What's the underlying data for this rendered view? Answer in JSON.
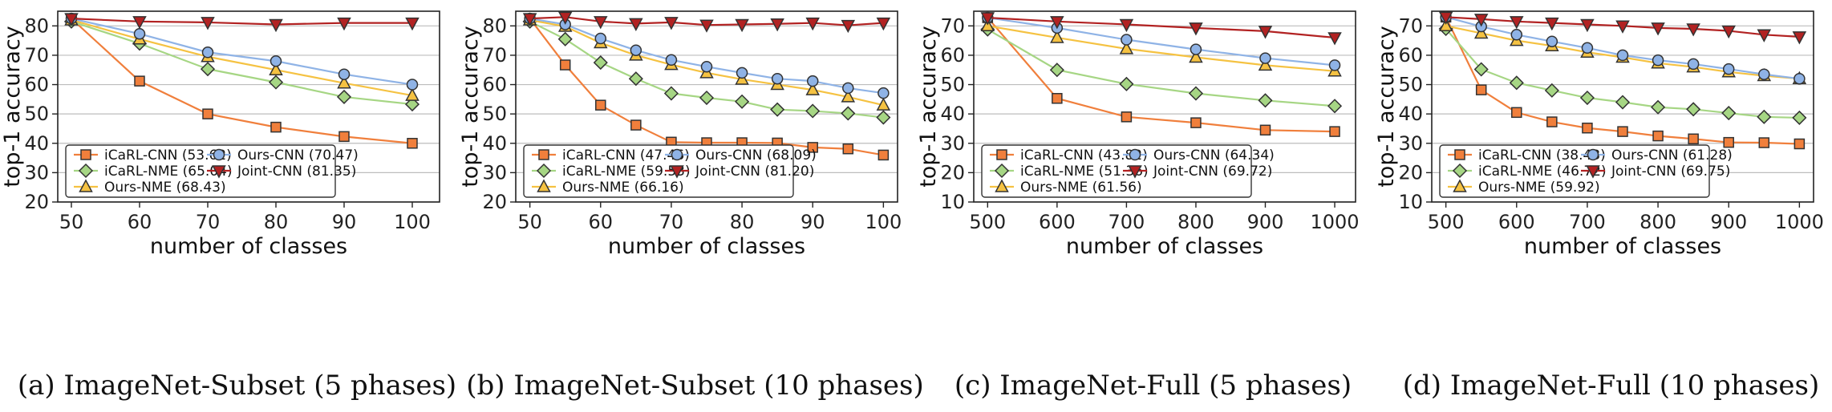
{
  "colors": {
    "iCaRL-CNN": "#f07f3c",
    "iCaRL-NME": "#a6d684",
    "Ours-NME": "#f5c242",
    "Ours-CNN": "#8fb3e6",
    "Joint-CNN": "#b22222"
  },
  "chart_data": [
    {
      "type": "line",
      "caption": "(a) ImageNet-Subset (5 phases)",
      "xlabel": "number of classes",
      "ylabel": "top-1 accuracy",
      "xlim": [
        48,
        104
      ],
      "ylim": [
        20,
        85
      ],
      "xticks": [
        50,
        60,
        70,
        80,
        90,
        100
      ],
      "yticks": [
        20,
        30,
        40,
        50,
        60,
        70,
        80
      ],
      "grid": "horizontal",
      "legend_position": "lower-left",
      "x": [
        50,
        60,
        70,
        80,
        90,
        100
      ],
      "series": [
        {
          "name": "iCaRL-CNN",
          "legend": "iCaRL-CNN (53.62)",
          "marker": "square",
          "values": [
            82.5,
            61.2,
            50.0,
            45.5,
            42.3,
            40.0
          ]
        },
        {
          "name": "iCaRL-NME",
          "legend": "iCaRL-NME (65.04)",
          "marker": "diamond",
          "values": [
            81.5,
            74.0,
            65.3,
            60.8,
            55.8,
            53.3
          ]
        },
        {
          "name": "Ours-NME",
          "legend": "Ours-NME (68.43)",
          "marker": "triangle-up",
          "values": [
            82.0,
            75.5,
            69.5,
            65.0,
            60.5,
            56.3
          ]
        },
        {
          "name": "Ours-CNN",
          "legend": "Ours-CNN (70.47)",
          "marker": "circle",
          "values": [
            82.5,
            77.3,
            71.0,
            68.0,
            63.5,
            60.0
          ]
        },
        {
          "name": "Joint-CNN",
          "legend": "Joint-CNN (81.35)",
          "marker": "triangle-down",
          "values": [
            82.5,
            81.5,
            81.2,
            80.5,
            81.0,
            81.0
          ]
        }
      ]
    },
    {
      "type": "line",
      "caption": "(b) ImageNet-Subset (10 phases)",
      "xlabel": "number of classes",
      "ylabel": "top-1 accuracy",
      "xlim": [
        48,
        102
      ],
      "ylim": [
        20,
        85
      ],
      "xticks": [
        50,
        60,
        70,
        80,
        90,
        100
      ],
      "yticks": [
        20,
        30,
        40,
        50,
        60,
        70,
        80
      ],
      "grid": "horizontal",
      "legend_position": "lower-left",
      "x": [
        50,
        55,
        60,
        65,
        70,
        75,
        80,
        85,
        90,
        95,
        100
      ],
      "series": [
        {
          "name": "iCaRL-CNN",
          "legend": "iCaRL-CNN (47.46)",
          "marker": "square",
          "values": [
            82.5,
            66.7,
            53.0,
            46.2,
            40.4,
            40.2,
            40.2,
            40.1,
            38.6,
            38.1,
            36.0
          ]
        },
        {
          "name": "iCaRL-NME",
          "legend": "iCaRL-NME (59.53)",
          "marker": "diamond",
          "values": [
            81.5,
            75.5,
            67.5,
            62.0,
            57.0,
            55.5,
            54.2,
            51.5,
            51.0,
            50.2,
            48.8
          ]
        },
        {
          "name": "Ours-NME",
          "legend": "Ours-NME (66.16)",
          "marker": "triangle-up",
          "values": [
            82.0,
            79.8,
            74.2,
            70.0,
            66.8,
            64.0,
            61.8,
            60.0,
            58.2,
            55.8,
            53.0
          ]
        },
        {
          "name": "Ours-CNN",
          "legend": "Ours-CNN (68.09)",
          "marker": "circle",
          "values": [
            82.5,
            80.5,
            75.7,
            71.7,
            68.4,
            66.1,
            64.0,
            62.0,
            61.2,
            58.8,
            57.1
          ]
        },
        {
          "name": "Joint-CNN",
          "legend": "Joint-CNN (81.20)",
          "marker": "triangle-down",
          "values": [
            82.5,
            83.0,
            81.5,
            80.8,
            81.2,
            80.3,
            80.5,
            80.7,
            81.0,
            80.2,
            81.0
          ]
        }
      ]
    },
    {
      "type": "line",
      "caption": "(c) ImageNet-Full (5 phases)",
      "xlabel": "number of classes",
      "ylabel": "top-1 accuracy",
      "xlim": [
        480,
        1030
      ],
      "ylim": [
        10,
        75
      ],
      "xticks": [
        500,
        600,
        700,
        800,
        900,
        1000
      ],
      "yticks": [
        10,
        20,
        30,
        40,
        50,
        60,
        70
      ],
      "grid": "horizontal",
      "legend_position": "lower-left",
      "x": [
        500,
        600,
        700,
        800,
        900,
        1000
      ],
      "series": [
        {
          "name": "iCaRL-CNN",
          "legend": "iCaRL-CNN (43.82)",
          "marker": "square",
          "values": [
            72.8,
            45.3,
            39.0,
            37.0,
            34.5,
            34.0
          ]
        },
        {
          "name": "iCaRL-NME",
          "legend": "iCaRL-NME (51.36)",
          "marker": "diamond",
          "values": [
            68.8,
            55.0,
            50.2,
            47.0,
            44.6,
            42.7
          ]
        },
        {
          "name": "Ours-NME",
          "legend": "Ours-NME (61.56)",
          "marker": "triangle-up",
          "values": [
            70.0,
            66.0,
            62.2,
            59.3,
            56.6,
            54.6
          ]
        },
        {
          "name": "Ours-CNN",
          "legend": "Ours-CNN (64.34)",
          "marker": "circle",
          "values": [
            72.8,
            69.3,
            65.3,
            62.0,
            59.0,
            56.6
          ]
        },
        {
          "name": "Joint-CNN",
          "legend": "Joint-CNN (69.72)",
          "marker": "triangle-down",
          "values": [
            72.8,
            71.5,
            70.5,
            69.3,
            68.2,
            66.0
          ]
        }
      ]
    },
    {
      "type": "line",
      "caption": "(d) ImageNet-Full (10 phases)",
      "xlabel": "number of classes",
      "ylabel": "top-1 accuracy",
      "xlim": [
        480,
        1020
      ],
      "ylim": [
        10,
        75
      ],
      "xticks": [
        500,
        600,
        700,
        800,
        900,
        1000
      ],
      "yticks": [
        10,
        20,
        30,
        40,
        50,
        60,
        70
      ],
      "grid": "horizontal",
      "legend_position": "lower-left",
      "x": [
        500,
        550,
        600,
        650,
        700,
        750,
        800,
        850,
        900,
        950,
        1000
      ],
      "series": [
        {
          "name": "iCaRL-CNN",
          "legend": "iCaRL-CNN (38.43)",
          "marker": "square",
          "values": [
            73.0,
            48.2,
            40.5,
            37.3,
            35.2,
            34.0,
            32.5,
            31.5,
            30.3,
            30.2,
            29.8
          ]
        },
        {
          "name": "iCaRL-NME",
          "legend": "iCaRL-NME (46.72)",
          "marker": "diamond",
          "values": [
            69.0,
            55.2,
            50.6,
            48.0,
            45.5,
            44.0,
            42.3,
            41.6,
            40.3,
            39.0,
            38.7
          ]
        },
        {
          "name": "Ours-NME",
          "legend": "Ours-NME (59.92)",
          "marker": "triangle-up",
          "values": [
            70.0,
            67.5,
            65.0,
            63.2,
            61.0,
            59.3,
            57.3,
            56.0,
            54.3,
            53.0,
            52.0
          ]
        },
        {
          "name": "Ours-CNN",
          "legend": "Ours-CNN (61.28)",
          "marker": "circle",
          "values": [
            73.0,
            69.8,
            67.0,
            64.7,
            62.5,
            60.0,
            58.3,
            57.0,
            55.3,
            53.5,
            52.0
          ]
        },
        {
          "name": "Joint-CNN",
          "legend": "Joint-CNN (69.75)",
          "marker": "triangle-down",
          "values": [
            73.0,
            72.3,
            71.5,
            71.0,
            70.5,
            70.0,
            69.3,
            69.0,
            68.3,
            67.0,
            66.3
          ]
        }
      ]
    }
  ]
}
